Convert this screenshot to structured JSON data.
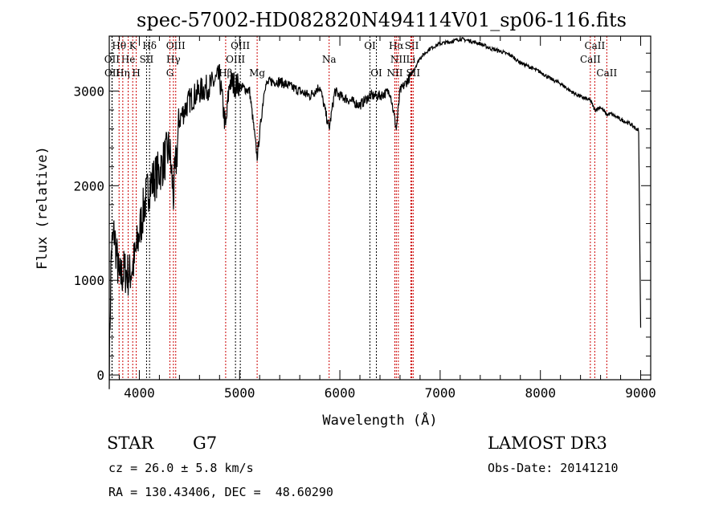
{
  "chart_data": {
    "type": "line",
    "title": "spec-57002-HD082820N494114V01_sp06-116.fits",
    "xlabel": "Wavelength (Å)",
    "ylabel": "Flux (relative)",
    "xlim": [
      3700,
      9100
    ],
    "ylim": [
      -50,
      3580
    ],
    "xticks": [
      4000,
      5000,
      6000,
      7000,
      8000,
      9000
    ],
    "yticks": [
      0,
      1000,
      2000,
      3000
    ],
    "grid": false,
    "series": [
      {
        "name": "spectrum",
        "x": [
          3700,
          3720,
          3750,
          3800,
          3850,
          3900,
          3950,
          4000,
          4050,
          4100,
          4200,
          4300,
          4340,
          4400,
          4500,
          4600,
          4700,
          4800,
          4861,
          4900,
          5000,
          5100,
          5175,
          5250,
          5300,
          5400,
          5500,
          5600,
          5700,
          5800,
          5893,
          5950,
          6000,
          6100,
          6200,
          6300,
          6400,
          6500,
          6563,
          6600,
          6700,
          6800,
          6900,
          7000,
          7100,
          7200,
          7300,
          7400,
          7500,
          7600,
          7700,
          7800,
          7900,
          8000,
          8100,
          8200,
          8300,
          8400,
          8500,
          8542,
          8600,
          8662,
          8700,
          8800,
          8900,
          8980,
          9000
        ],
        "y": [
          100,
          1300,
          1500,
          1000,
          1100,
          1050,
          1200,
          1500,
          1800,
          2000,
          2150,
          2400,
          1900,
          2700,
          2900,
          3000,
          3050,
          3150,
          2600,
          3100,
          3050,
          3000,
          2300,
          3050,
          3100,
          3100,
          3050,
          3000,
          2950,
          3050,
          2600,
          3000,
          2950,
          2900,
          2850,
          2950,
          2950,
          3000,
          2600,
          3000,
          3150,
          3350,
          3450,
          3500,
          3520,
          3550,
          3530,
          3500,
          3450,
          3420,
          3380,
          3300,
          3250,
          3200,
          3130,
          3080,
          3000,
          2940,
          2900,
          2800,
          2830,
          2750,
          2760,
          2700,
          2650,
          2580,
          500
        ]
      }
    ],
    "lines": [
      {
        "label": "Hθ",
        "wl": 3798,
        "row": 0,
        "red": true
      },
      {
        "label": "K",
        "wl": 3934,
        "row": 0,
        "red": true
      },
      {
        "label": "Hδ",
        "wl": 4102,
        "row": 0,
        "red": false
      },
      {
        "label": "OIII",
        "wl": 4363,
        "row": 0,
        "red": true
      },
      {
        "label": "OIII",
        "wl": 5007,
        "row": 0,
        "red": false
      },
      {
        "label": "OI",
        "wl": 6300,
        "row": 0,
        "red": false
      },
      {
        "label": "Hα",
        "wl": 6563,
        "row": 0,
        "red": true
      },
      {
        "label": "SII",
        "wl": 6717,
        "row": 0,
        "red": true
      },
      {
        "label": "CaII",
        "wl": 8542,
        "row": 0,
        "red": true
      },
      {
        "label": "OII",
        "wl": 3727,
        "row": 1,
        "red": false
      },
      {
        "label": "He",
        "wl": 3889,
        "row": 1,
        "red": true
      },
      {
        "label": "SII",
        "wl": 4072,
        "row": 1,
        "red": false
      },
      {
        "label": "Hγ",
        "wl": 4340,
        "row": 1,
        "red": true
      },
      {
        "label": "OIII",
        "wl": 4959,
        "row": 1,
        "red": false
      },
      {
        "label": "NII",
        "wl": 6583,
        "row": 1,
        "red": true
      },
      {
        "label": "Li",
        "wl": 6708,
        "row": 1,
        "red": true
      },
      {
        "label": "CaII",
        "wl": 8498,
        "row": 1,
        "red": true
      },
      {
        "label": "OII",
        "wl": 3729,
        "row": 2,
        "red": false
      },
      {
        "label": "Hη",
        "wl": 3835,
        "row": 2,
        "red": true
      },
      {
        "label": "H",
        "wl": 3969,
        "row": 2,
        "red": true
      },
      {
        "label": "G",
        "wl": 4305,
        "row": 2,
        "red": true
      },
      {
        "label": "Hβ",
        "wl": 4861,
        "row": 2,
        "red": true
      },
      {
        "label": "Mg",
        "wl": 5175,
        "row": 2,
        "red": true
      },
      {
        "label": "Na",
        "wl": 5893,
        "row": 1,
        "red": true
      },
      {
        "label": "OI",
        "wl": 6364,
        "row": 2,
        "red": false
      },
      {
        "label": "NII",
        "wl": 6548,
        "row": 2,
        "red": true
      },
      {
        "label": "SII",
        "wl": 6731,
        "row": 2,
        "red": true
      },
      {
        "label": "CaII",
        "wl": 8662,
        "row": 2,
        "red": true
      }
    ]
  },
  "info": {
    "class": "STAR",
    "subclass": "G7",
    "cz": "cz = 26.0 ± 5.8 km/s",
    "radec": "RA = 130.43406, DEC =  48.60290",
    "survey": "LAMOST DR3",
    "obsdate": "Obs-Date: 20141210"
  },
  "colors": {
    "line": "#000000",
    "marker_red": "#cc0000",
    "marker_black": "#000000"
  }
}
